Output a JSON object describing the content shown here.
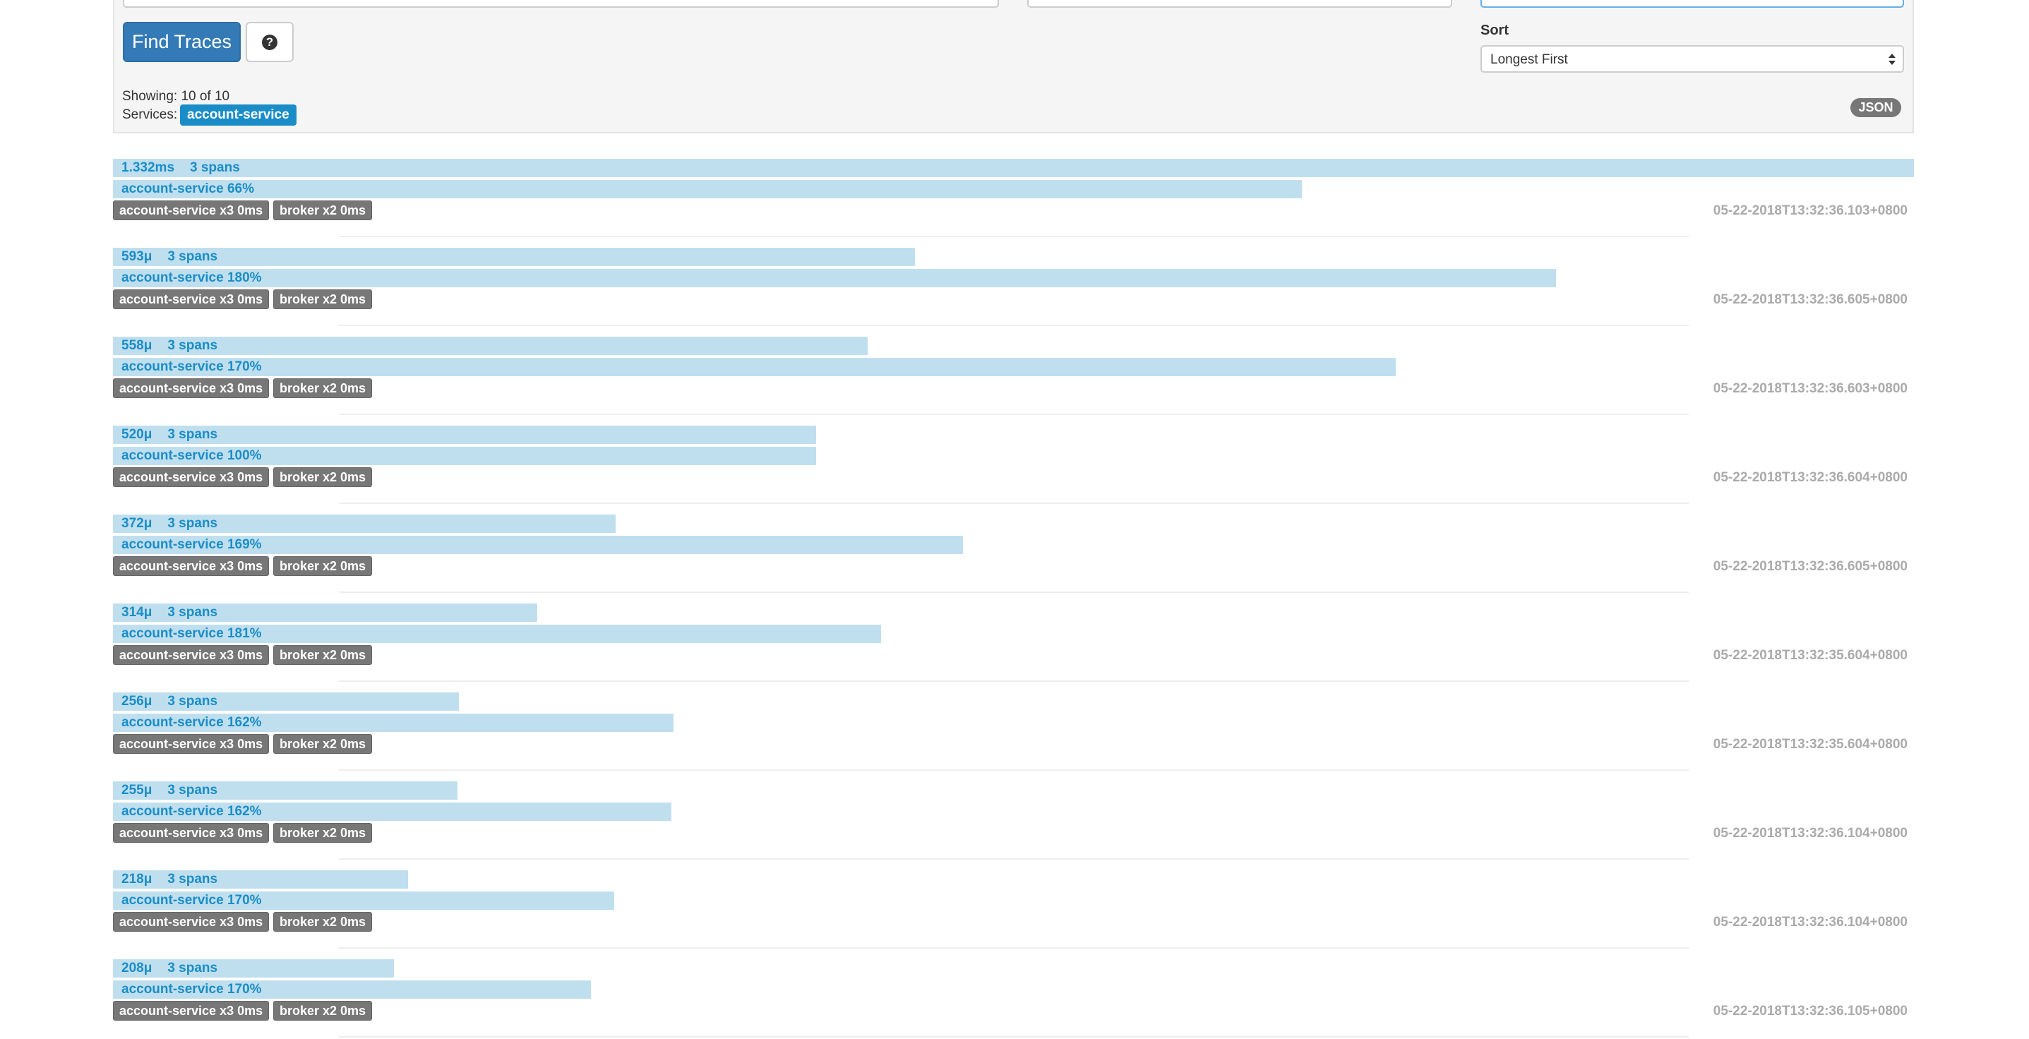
{
  "search": {
    "find_button": "Find Traces",
    "help_button": "?",
    "sort_label": "Sort",
    "sort_value": "Longest First",
    "showing": "Showing: 10 of 10",
    "services_label": "Services:",
    "service_badge": "account-service",
    "json_badge": "JSON"
  },
  "traces": [
    {
      "duration": "1.332ms",
      "spans": "3 spans",
      "service": "account-service 66%",
      "tags": [
        "account-service x3 0ms",
        "broker x2 0ms"
      ],
      "timestamp": "05-22-2018T13:32:36.103+0800"
    },
    {
      "duration": "593μ",
      "spans": "3 spans",
      "service": "account-service 180%",
      "tags": [
        "account-service x3 0ms",
        "broker x2 0ms"
      ],
      "timestamp": "05-22-2018T13:32:36.605+0800"
    },
    {
      "duration": "558μ",
      "spans": "3 spans",
      "service": "account-service 170%",
      "tags": [
        "account-service x3 0ms",
        "broker x2 0ms"
      ],
      "timestamp": "05-22-2018T13:32:36.603+0800"
    },
    {
      "duration": "520μ",
      "spans": "3 spans",
      "service": "account-service 100%",
      "tags": [
        "account-service x3 0ms",
        "broker x2 0ms"
      ],
      "timestamp": "05-22-2018T13:32:36.604+0800"
    },
    {
      "duration": "372μ",
      "spans": "3 spans",
      "service": "account-service 169%",
      "tags": [
        "account-service x3 0ms",
        "broker x2 0ms"
      ],
      "timestamp": "05-22-2018T13:32:36.605+0800"
    },
    {
      "duration": "314μ",
      "spans": "3 spans",
      "service": "account-service 181%",
      "tags": [
        "account-service x3 0ms",
        "broker x2 0ms"
      ],
      "timestamp": "05-22-2018T13:32:35.604+0800"
    },
    {
      "duration": "256μ",
      "spans": "3 spans",
      "service": "account-service 162%",
      "tags": [
        "account-service x3 0ms",
        "broker x2 0ms"
      ],
      "timestamp": "05-22-2018T13:32:35.604+0800"
    },
    {
      "duration": "255μ",
      "spans": "3 spans",
      "service": "account-service 162%",
      "tags": [
        "account-service x3 0ms",
        "broker x2 0ms"
      ],
      "timestamp": "05-22-2018T13:32:36.104+0800"
    },
    {
      "duration": "218μ",
      "spans": "3 spans",
      "service": "account-service 170%",
      "tags": [
        "account-service x3 0ms",
        "broker x2 0ms"
      ],
      "timestamp": "05-22-2018T13:32:36.104+0800"
    },
    {
      "duration": "208μ",
      "spans": "3 spans",
      "service": "account-service 170%",
      "tags": [
        "account-service x3 0ms",
        "broker x2 0ms"
      ],
      "timestamp": "05-22-2018T13:32:36.105+0800"
    }
  ]
}
